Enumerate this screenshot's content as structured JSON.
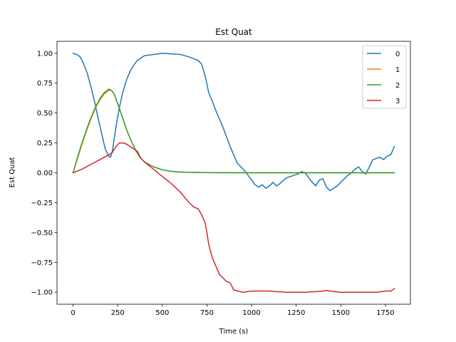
{
  "chart_data": {
    "type": "line",
    "title": "Est Quat",
    "xlabel": "Time (s)",
    "ylabel": "Est Quat",
    "xlim": [
      -90,
      1890
    ],
    "ylim": [
      -1.1,
      1.1
    ],
    "xticks": [
      0,
      250,
      500,
      750,
      1000,
      1250,
      1500,
      1750
    ],
    "yticks": [
      1.0,
      0.75,
      0.5,
      0.25,
      0.0,
      -0.25,
      -0.5,
      -0.75,
      -1.0
    ],
    "xtick_labels": [
      "0",
      "250",
      "500",
      "750",
      "1000",
      "1250",
      "1500",
      "1750"
    ],
    "ytick_labels": [
      "1.00",
      "0.75",
      "0.50",
      "0.25",
      "0.00",
      "−0.25",
      "−0.50",
      "−0.75",
      "−1.00"
    ],
    "grid": false,
    "legend_position": "top-right",
    "series": [
      {
        "name": "0",
        "color": "#1f77b4",
        "x": [
          0,
          20,
          40,
          60,
          80,
          100,
          120,
          140,
          160,
          180,
          200,
          210,
          220,
          240,
          260,
          280,
          300,
          320,
          340,
          360,
          380,
          400,
          450,
          500,
          550,
          600,
          650,
          700,
          720,
          740,
          760,
          780,
          800,
          820,
          840,
          860,
          880,
          900,
          920,
          940,
          960,
          980,
          1000,
          1020,
          1040,
          1060,
          1080,
          1100,
          1120,
          1140,
          1160,
          1180,
          1200,
          1220,
          1240,
          1260,
          1280,
          1300,
          1320,
          1340,
          1360,
          1380,
          1400,
          1420,
          1440,
          1460,
          1480,
          1500,
          1520,
          1540,
          1560,
          1580,
          1600,
          1620,
          1640,
          1660,
          1680,
          1700,
          1720,
          1740,
          1760,
          1780,
          1800
        ],
        "y": [
          1.0,
          0.99,
          0.97,
          0.91,
          0.83,
          0.72,
          0.6,
          0.46,
          0.33,
          0.2,
          0.14,
          0.13,
          0.18,
          0.38,
          0.55,
          0.68,
          0.78,
          0.85,
          0.9,
          0.94,
          0.96,
          0.98,
          0.99,
          1.0,
          0.995,
          0.99,
          0.97,
          0.94,
          0.91,
          0.81,
          0.67,
          0.6,
          0.52,
          0.45,
          0.38,
          0.3,
          0.22,
          0.15,
          0.08,
          0.05,
          0.02,
          -0.02,
          -0.06,
          -0.1,
          -0.12,
          -0.1,
          -0.13,
          -0.11,
          -0.08,
          -0.11,
          -0.09,
          -0.06,
          -0.04,
          -0.03,
          -0.02,
          -0.01,
          0.01,
          0.0,
          -0.04,
          -0.08,
          -0.11,
          -0.06,
          -0.05,
          -0.12,
          -0.15,
          -0.13,
          -0.11,
          -0.08,
          -0.05,
          -0.02,
          0.0,
          0.03,
          0.05,
          0.01,
          -0.01,
          0.05,
          0.11,
          0.12,
          0.13,
          0.11,
          0.14,
          0.15,
          0.22
        ]
      },
      {
        "name": "1",
        "color": "#ff7f0e",
        "x": [
          0,
          25,
          50,
          75,
          100,
          125,
          150,
          175,
          200,
          215,
          230,
          250,
          275,
          300,
          325,
          350,
          375,
          400,
          450,
          500,
          550,
          600,
          700,
          800,
          1000,
          1200,
          1400,
          1600,
          1800
        ],
        "y": [
          0.0,
          0.12,
          0.24,
          0.35,
          0.45,
          0.54,
          0.61,
          0.66,
          0.69,
          0.69,
          0.66,
          0.58,
          0.47,
          0.36,
          0.27,
          0.19,
          0.13,
          0.09,
          0.05,
          0.025,
          0.012,
          0.006,
          0.002,
          0.001,
          0.0,
          0.0,
          0.0,
          0.0,
          0.0
        ]
      },
      {
        "name": "2",
        "color": "#2ca02c",
        "x": [
          0,
          25,
          50,
          75,
          100,
          125,
          150,
          175,
          200,
          215,
          230,
          250,
          275,
          300,
          325,
          350,
          375,
          400,
          450,
          500,
          550,
          600,
          700,
          800,
          1000,
          1200,
          1400,
          1600,
          1800
        ],
        "y": [
          0.0,
          0.13,
          0.25,
          0.36,
          0.46,
          0.55,
          0.62,
          0.67,
          0.7,
          0.69,
          0.66,
          0.58,
          0.47,
          0.36,
          0.27,
          0.19,
          0.13,
          0.09,
          0.05,
          0.025,
          0.012,
          0.006,
          0.002,
          0.001,
          0.0,
          0.0,
          0.0,
          0.0,
          0.0
        ]
      },
      {
        "name": "3",
        "color": "#d62728",
        "x": [
          0,
          50,
          100,
          150,
          200,
          220,
          240,
          260,
          280,
          300,
          320,
          340,
          360,
          380,
          400,
          450,
          500,
          550,
          600,
          650,
          680,
          700,
          720,
          740,
          750,
          760,
          780,
          800,
          820,
          840,
          860,
          880,
          900,
          950,
          1000,
          1100,
          1200,
          1300,
          1400,
          1420,
          1440,
          1500,
          1600,
          1700,
          1750,
          1780,
          1800
        ],
        "y": [
          0.0,
          0.03,
          0.07,
          0.11,
          0.15,
          0.17,
          0.22,
          0.25,
          0.25,
          0.24,
          0.22,
          0.2,
          0.18,
          0.12,
          0.09,
          0.03,
          -0.03,
          -0.09,
          -0.16,
          -0.25,
          -0.29,
          -0.3,
          -0.35,
          -0.42,
          -0.5,
          -0.6,
          -0.71,
          -0.78,
          -0.85,
          -0.88,
          -0.91,
          -0.92,
          -0.98,
          -1.0,
          -0.99,
          -0.99,
          -1.0,
          -1.0,
          -0.99,
          -0.985,
          -0.99,
          -1.0,
          -1.0,
          -1.0,
          -0.99,
          -0.99,
          -0.97
        ]
      }
    ]
  }
}
